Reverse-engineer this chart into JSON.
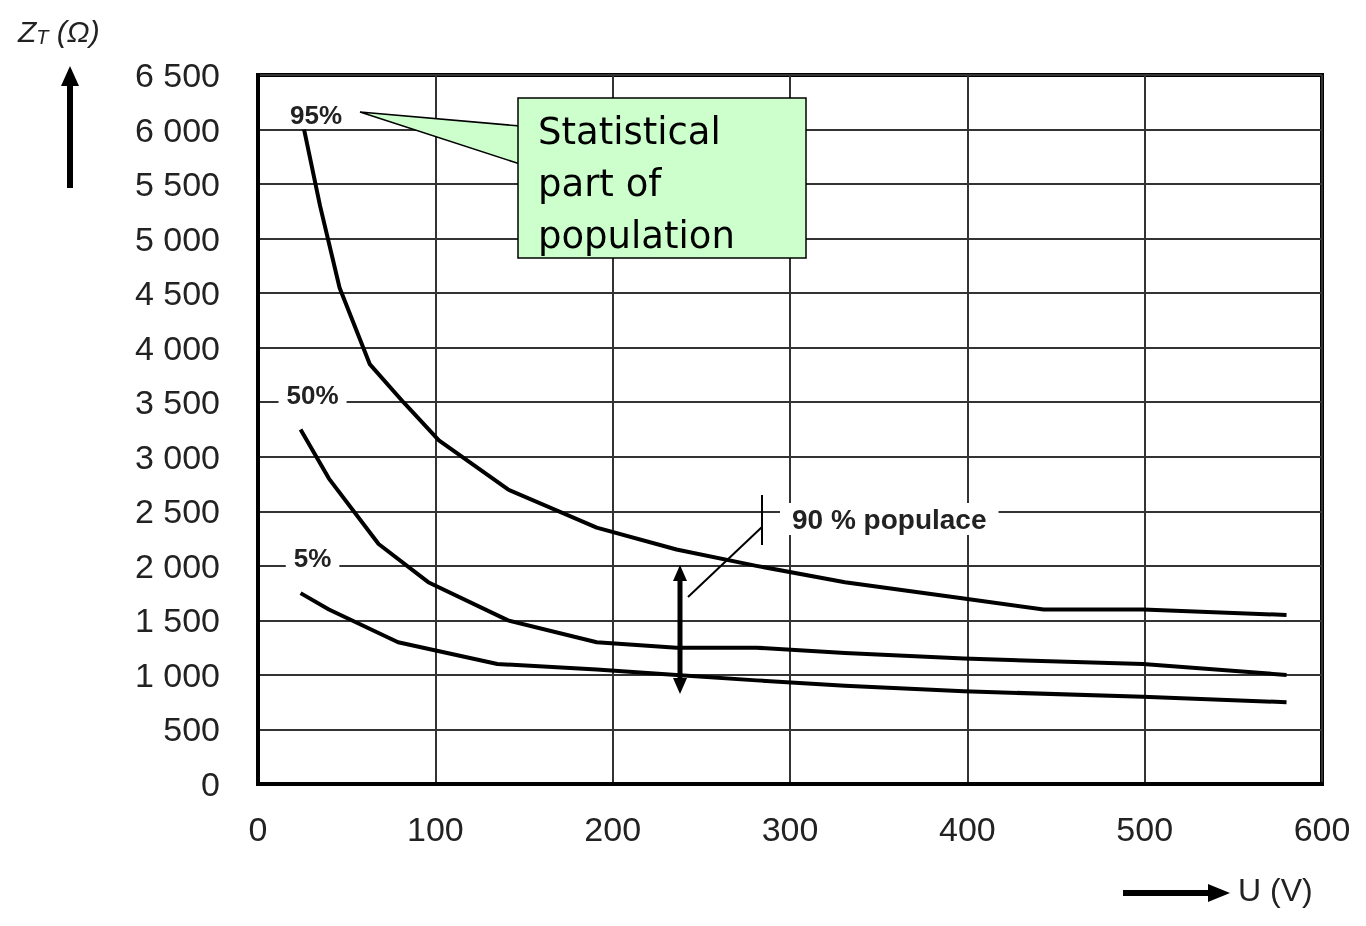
{
  "chart_data": {
    "type": "line",
    "xlabel": "U (V)",
    "ylabel": "Z$_{T}$ (Ω)",
    "xlim": [
      0,
      600
    ],
    "xticks": [
      0,
      100,
      200,
      300,
      400,
      500,
      600
    ],
    "ylim": [
      0,
      6500
    ],
    "yticks": [
      0,
      500,
      {
        "value": 1000,
        "label": "1 000"
      },
      {
        "value": 1500,
        "label": "1 500"
      },
      {
        "value": 2000,
        "label": "2 000"
      },
      {
        "value": 2500,
        "label": "2 500"
      },
      {
        "value": 3000,
        "label": "3 000"
      },
      {
        "value": 3500,
        "label": "3 500"
      },
      {
        "value": 4000,
        "label": "4 000"
      },
      {
        "value": 4500,
        "label": "4 500"
      },
      {
        "value": 5000,
        "label": "5 000"
      },
      {
        "value": 5500,
        "label": "5 500"
      },
      {
        "value": 6000,
        "label": "6 000"
      },
      {
        "value": 6500,
        "label": "6 500"
      }
    ],
    "grid": true,
    "marker": "none",
    "line_style": "solid",
    "series": [
      {
        "name": "95%",
        "color": "#000000",
        "x": [
          26,
          35,
          46,
          63,
          82,
          102,
          141,
          191,
          236,
          281,
          331,
          398,
          443,
          499,
          580
        ],
        "values": [
          6000,
          5300,
          4550,
          3850,
          3500,
          3150,
          2700,
          2350,
          2150,
          2000,
          1850,
          1700,
          1600,
          1600,
          1550
        ]
      },
      {
        "name": "50%",
        "color": "#000000",
        "x": [
          24,
          40,
          68,
          96,
          141,
          191,
          236,
          281,
          331,
          398,
          499,
          580
        ],
        "values": [
          3250,
          2800,
          2200,
          1850,
          1500,
          1300,
          1250,
          1250,
          1200,
          1150,
          1100,
          1000
        ]
      },
      {
        "name": "5%",
        "color": "#000000",
        "x": [
          24,
          40,
          79,
          135,
          191,
          236,
          281,
          331,
          398,
          499,
          580
        ],
        "values": [
          1750,
          1600,
          1300,
          1100,
          1050,
          1000,
          950,
          900,
          850,
          800,
          750
        ]
      }
    ],
    "annotations": [
      "Statistical part of population",
      "90 % populace"
    ]
  }
}
